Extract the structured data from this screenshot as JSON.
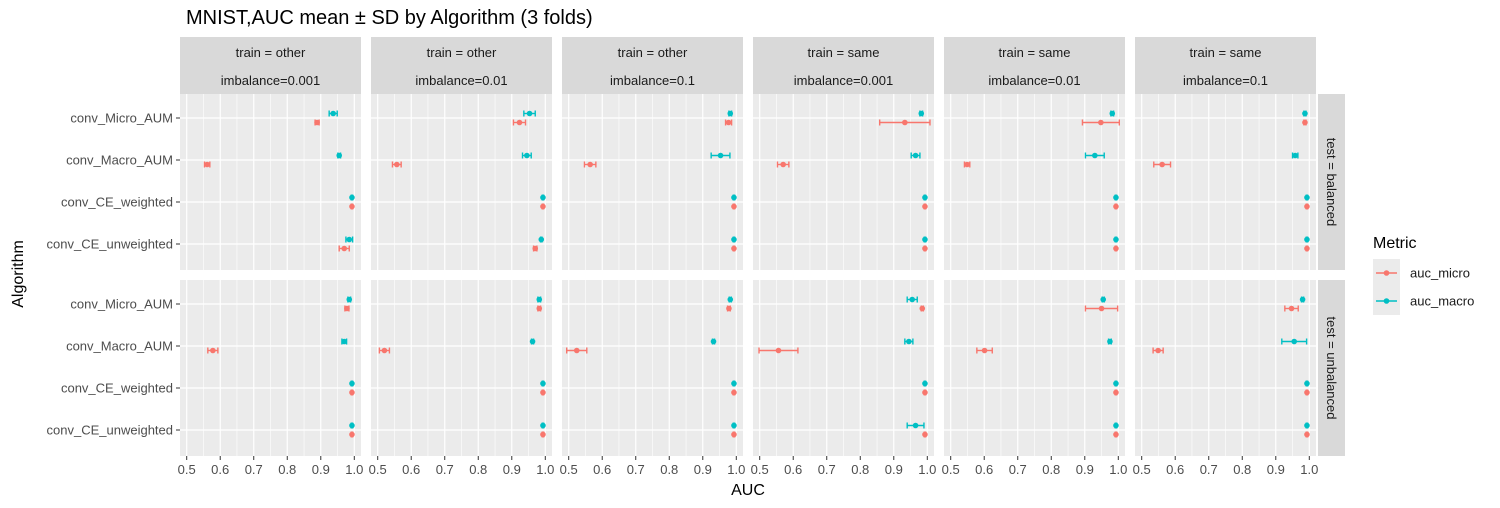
{
  "chart_data": {
    "type": "scatter",
    "title": "MNIST,AUC mean ± SD by Algorithm (3 folds)",
    "xlabel": "AUC",
    "ylabel": "Algorithm",
    "xlim": [
      0.48,
      1.02
    ],
    "x_ticks": [
      0.5,
      0.6,
      0.7,
      0.8,
      0.9,
      1.0
    ],
    "x_tick_labels": [
      "0.5",
      "0.6",
      "0.7",
      "0.8",
      "0.9",
      "1.0"
    ],
    "categories": [
      "conv_Micro_AUM",
      "conv_Macro_AUM",
      "conv_CE_weighted",
      "conv_CE_unweighted"
    ],
    "colors": {
      "auc_micro": "#F8766D",
      "auc_macro": "#00BFC4"
    },
    "legend": {
      "title": "Metric",
      "position": "right",
      "entries": [
        {
          "key": "auc_micro",
          "label": "auc_micro"
        },
        {
          "key": "auc_macro",
          "label": "auc_macro"
        }
      ]
    },
    "col_facets": [
      {
        "line1": "train = other",
        "line2": "imbalance=0.001"
      },
      {
        "line1": "train = other",
        "line2": "imbalance=0.01"
      },
      {
        "line1": "train = other",
        "line2": "imbalance=0.1"
      },
      {
        "line1": "train = same",
        "line2": "imbalance=0.001"
      },
      {
        "line1": "train = same",
        "line2": "imbalance=0.01"
      },
      {
        "line1": "train = same",
        "line2": "imbalance=0.1"
      }
    ],
    "row_facets": [
      {
        "label": "test = balanced"
      },
      {
        "label": "test = unbalanced"
      }
    ],
    "panels": [
      [
        {
          "macro": [
            [
              0.937,
              0.012
            ],
            [
              0.955,
              0.004
            ],
            [
              0.993,
              0.002
            ],
            [
              0.985,
              0.01
            ]
          ],
          "micro": [
            [
              0.889,
              0.006
            ],
            [
              0.561,
              0.008
            ],
            [
              0.993,
              0.002
            ],
            [
              0.97,
              0.015
            ]
          ]
        },
        {
          "macro": [
            [
              0.953,
              0.017
            ],
            [
              0.945,
              0.013
            ],
            [
              0.993,
              0.002
            ],
            [
              0.988,
              0.002
            ]
          ],
          "micro": [
            [
              0.923,
              0.018
            ],
            [
              0.557,
              0.013
            ],
            [
              0.993,
              0.002
            ],
            [
              0.97,
              0.005
            ]
          ]
        },
        {
          "macro": [
            [
              0.982,
              0.004
            ],
            [
              0.953,
              0.028
            ],
            [
              0.993,
              0.002
            ],
            [
              0.993,
              0.002
            ]
          ],
          "micro": [
            [
              0.977,
              0.009
            ],
            [
              0.564,
              0.017
            ],
            [
              0.993,
              0.002
            ],
            [
              0.993,
              0.002
            ]
          ]
        },
        {
          "macro": [
            [
              0.982,
              0.004
            ],
            [
              0.965,
              0.013
            ],
            [
              0.993,
              0.002
            ],
            [
              0.993,
              0.002
            ]
          ],
          "micro": [
            [
              0.933,
              0.075
            ],
            [
              0.57,
              0.017
            ],
            [
              0.993,
              0.002
            ],
            [
              0.993,
              0.002
            ]
          ]
        },
        {
          "macro": [
            [
              0.982,
              0.004
            ],
            [
              0.93,
              0.028
            ],
            [
              0.993,
              0.002
            ],
            [
              0.993,
              0.002
            ]
          ],
          "micro": [
            [
              0.948,
              0.055
            ],
            [
              0.549,
              0.008
            ],
            [
              0.993,
              0.002
            ],
            [
              0.993,
              0.002
            ]
          ]
        },
        {
          "macro": [
            [
              0.987,
              0.003
            ],
            [
              0.958,
              0.008
            ],
            [
              0.993,
              0.002
            ],
            [
              0.993,
              0.002
            ]
          ],
          "micro": [
            [
              0.987,
              0.003
            ],
            [
              0.561,
              0.025
            ],
            [
              0.993,
              0.002
            ],
            [
              0.993,
              0.002
            ]
          ]
        }
      ],
      [
        {
          "macro": [
            [
              0.985,
              0.004
            ],
            [
              0.97,
              0.007
            ],
            [
              0.993,
              0.002
            ],
            [
              0.993,
              0.002
            ]
          ],
          "micro": [
            [
              0.978,
              0.006
            ],
            [
              0.578,
              0.015
            ],
            [
              0.993,
              0.002
            ],
            [
              0.993,
              0.002
            ]
          ]
        },
        {
          "macro": [
            [
              0.982,
              0.004
            ],
            [
              0.962,
              0.003
            ],
            [
              0.993,
              0.002
            ],
            [
              0.993,
              0.002
            ]
          ],
          "micro": [
            [
              0.982,
              0.004
            ],
            [
              0.52,
              0.015
            ],
            [
              0.993,
              0.002
            ],
            [
              0.993,
              0.002
            ]
          ]
        },
        {
          "macro": [
            [
              0.982,
              0.003
            ],
            [
              0.932,
              0.003
            ],
            [
              0.993,
              0.002
            ],
            [
              0.993,
              0.002
            ]
          ],
          "micro": [
            [
              0.978,
              0.004
            ],
            [
              0.524,
              0.03
            ],
            [
              0.993,
              0.002
            ],
            [
              0.993,
              0.002
            ]
          ]
        },
        {
          "macro": [
            [
              0.955,
              0.015
            ],
            [
              0.945,
              0.012
            ],
            [
              0.993,
              0.002
            ],
            [
              0.965,
              0.025
            ]
          ],
          "micro": [
            [
              0.985,
              0.003
            ],
            [
              0.556,
              0.058
            ],
            [
              0.993,
              0.002
            ],
            [
              0.993,
              0.002
            ]
          ]
        },
        {
          "macro": [
            [
              0.955,
              0.003
            ],
            [
              0.975,
              0.004
            ],
            [
              0.993,
              0.002
            ],
            [
              0.993,
              0.002
            ]
          ],
          "micro": [
            [
              0.95,
              0.048
            ],
            [
              0.601,
              0.023
            ],
            [
              0.993,
              0.002
            ],
            [
              0.993,
              0.002
            ]
          ]
        },
        {
          "macro": [
            [
              0.98,
              0.003
            ],
            [
              0.955,
              0.037
            ],
            [
              0.993,
              0.002
            ],
            [
              0.993,
              0.002
            ]
          ],
          "micro": [
            [
              0.947,
              0.02
            ],
            [
              0.549,
              0.015
            ],
            [
              0.993,
              0.002
            ],
            [
              0.993,
              0.002
            ]
          ]
        }
      ]
    ]
  }
}
